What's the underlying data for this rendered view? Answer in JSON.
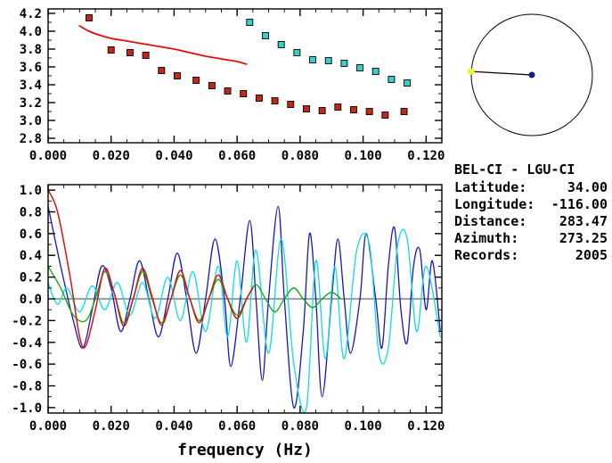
{
  "station": {
    "title": "BEL-CI - LGU-CI",
    "fields": [
      {
        "label": "Latitude:",
        "value": "34.00"
      },
      {
        "label": "Longitude:",
        "value": "-116.00"
      },
      {
        "label": "Distance:",
        "value": "283.47"
      },
      {
        "label": "Azimuth:",
        "value": "273.25"
      },
      {
        "label": "Records:",
        "value": "2005"
      }
    ]
  },
  "azimuth_dial": {
    "azimuth_deg": 273.25,
    "center_dot_color": "#1a1a8c",
    "end_dot_color": "#ffff00",
    "ring_color": "#000000"
  },
  "chart_data": [
    {
      "id": "top-chart",
      "type": "scatter",
      "title": "",
      "xlabel": "",
      "ylabel": "",
      "xlim": [
        0,
        0.125
      ],
      "ylim": [
        2.75,
        4.25
      ],
      "xticks": [
        0,
        0.02,
        0.04,
        0.06,
        0.08,
        0.1,
        0.12
      ],
      "xtick_labels": [
        "0.000",
        "0.020",
        "0.040",
        "0.060",
        "0.080",
        "0.100",
        "0.120"
      ],
      "x_minor_step": 0.005,
      "yticks": [
        2.8,
        3.0,
        3.2,
        3.4,
        3.6,
        3.8,
        4.0,
        4.2
      ],
      "ytick_labels": [
        "2.8",
        "3.0",
        "3.2",
        "3.4",
        "3.6",
        "3.8",
        "4.0",
        "4.2"
      ],
      "y_minor_step": 0.1,
      "grid": false,
      "series": [
        {
          "name": "red-square-dispersion-points",
          "kind": "markers",
          "marker": "square",
          "color": "#c22818",
          "edge": "#000000",
          "points": [
            [
              0.013,
              4.15
            ],
            [
              0.02,
              3.79
            ],
            [
              0.026,
              3.76
            ],
            [
              0.031,
              3.73
            ],
            [
              0.036,
              3.56
            ],
            [
              0.041,
              3.5
            ],
            [
              0.047,
              3.45
            ],
            [
              0.052,
              3.39
            ],
            [
              0.057,
              3.33
            ],
            [
              0.062,
              3.3
            ],
            [
              0.067,
              3.25
            ],
            [
              0.072,
              3.22
            ],
            [
              0.077,
              3.18
            ],
            [
              0.082,
              3.13
            ],
            [
              0.087,
              3.11
            ],
            [
              0.092,
              3.15
            ],
            [
              0.097,
              3.12
            ],
            [
              0.102,
              3.1
            ],
            [
              0.107,
              3.06
            ],
            [
              0.113,
              3.1
            ]
          ]
        },
        {
          "name": "cyan-square-dispersion-points",
          "kind": "markers",
          "marker": "square",
          "color": "#35d0c8",
          "edge": "#000000",
          "points": [
            [
              0.064,
              4.1
            ],
            [
              0.069,
              3.95
            ],
            [
              0.074,
              3.85
            ],
            [
              0.079,
              3.76
            ],
            [
              0.084,
              3.68
            ],
            [
              0.089,
              3.67
            ],
            [
              0.094,
              3.64
            ],
            [
              0.099,
              3.59
            ],
            [
              0.104,
              3.55
            ],
            [
              0.109,
              3.46
            ],
            [
              0.114,
              3.42
            ]
          ]
        },
        {
          "name": "red-dispersion-curve",
          "kind": "line",
          "color": "#dd1010",
          "width": 1.8,
          "points": [
            [
              0.01,
              4.06
            ],
            [
              0.013,
              4.0
            ],
            [
              0.016,
              3.96
            ],
            [
              0.02,
              3.92
            ],
            [
              0.025,
              3.89
            ],
            [
              0.03,
              3.86
            ],
            [
              0.035,
              3.83
            ],
            [
              0.04,
              3.8
            ],
            [
              0.045,
              3.76
            ],
            [
              0.05,
              3.72
            ],
            [
              0.055,
              3.69
            ],
            [
              0.06,
              3.66
            ],
            [
              0.063,
              3.63
            ]
          ]
        }
      ]
    },
    {
      "id": "bottom-chart",
      "type": "line",
      "title": "",
      "xlabel": "frequency (Hz)",
      "ylabel": "",
      "zeroline": true,
      "xlim": [
        0,
        0.125
      ],
      "ylim": [
        -1.05,
        1.05
      ],
      "xticks": [
        0,
        0.02,
        0.04,
        0.06,
        0.08,
        0.1,
        0.12
      ],
      "xtick_labels": [
        "0.000",
        "0.020",
        "0.040",
        "0.060",
        "0.080",
        "0.100",
        "0.120"
      ],
      "x_minor_step": 0.005,
      "yticks": [
        -1.0,
        -0.8,
        -0.6,
        -0.4,
        -0.2,
        0.0,
        0.2,
        0.4,
        0.6,
        0.8,
        1.0
      ],
      "ytick_labels": [
        "-1.0",
        "-0.8",
        "-0.6",
        "-0.4",
        "-0.2",
        "0.0",
        "0.2",
        "0.4",
        "0.6",
        "0.8",
        "1.0"
      ],
      "y_minor_step": 0.1,
      "grid": false,
      "series": [
        {
          "name": "correlation-trace-blue",
          "kind": "line",
          "color": "#1515c8",
          "width": 1.3,
          "points": [
            [
              0,
              0.85
            ],
            [
              0.004,
              0.3
            ],
            [
              0.008,
              -0.2
            ],
            [
              0.011,
              -0.45
            ],
            [
              0.014,
              -0.1
            ],
            [
              0.017,
              0.3
            ],
            [
              0.02,
              0.1
            ],
            [
              0.023,
              -0.3
            ],
            [
              0.026,
              0
            ],
            [
              0.029,
              0.35
            ],
            [
              0.032,
              0
            ],
            [
              0.035,
              -0.35
            ],
            [
              0.038,
              0
            ],
            [
              0.041,
              0.42
            ],
            [
              0.044,
              0
            ],
            [
              0.047,
              -0.5
            ],
            [
              0.05,
              0
            ],
            [
              0.053,
              0.55
            ],
            [
              0.056,
              0
            ],
            [
              0.058,
              -0.62
            ],
            [
              0.061,
              0
            ],
            [
              0.064,
              0.72
            ],
            [
              0.066,
              0
            ],
            [
              0.068,
              -0.75
            ],
            [
              0.07,
              0
            ],
            [
              0.073,
              0.85
            ],
            [
              0.075,
              0
            ],
            [
              0.078,
              -1.0
            ],
            [
              0.081,
              -0.3
            ],
            [
              0.083,
              0.6
            ],
            [
              0.085,
              0
            ],
            [
              0.087,
              -0.9
            ],
            [
              0.09,
              0
            ],
            [
              0.092,
              0.55
            ],
            [
              0.094,
              0
            ],
            [
              0.096,
              -0.5
            ],
            [
              0.099,
              0
            ],
            [
              0.101,
              0.6
            ],
            [
              0.104,
              0
            ],
            [
              0.106,
              -0.45
            ],
            [
              0.108,
              0.3
            ],
            [
              0.11,
              0.65
            ],
            [
              0.112,
              -0.1
            ],
            [
              0.114,
              -0.4
            ],
            [
              0.116,
              0.3
            ],
            [
              0.118,
              0.45
            ],
            [
              0.12,
              -0.1
            ],
            [
              0.122,
              0.35
            ],
            [
              0.1245,
              -0.3
            ]
          ]
        },
        {
          "name": "correlation-trace-cyan",
          "kind": "line",
          "color": "#10dede",
          "width": 1.3,
          "points": [
            [
              0,
              0.15
            ],
            [
              0.003,
              -0.05
            ],
            [
              0.006,
              0.1
            ],
            [
              0.01,
              -0.12
            ],
            [
              0.014,
              0.12
            ],
            [
              0.018,
              -0.1
            ],
            [
              0.022,
              0.15
            ],
            [
              0.026,
              -0.15
            ],
            [
              0.03,
              0.15
            ],
            [
              0.034,
              -0.18
            ],
            [
              0.038,
              0.2
            ],
            [
              0.042,
              -0.2
            ],
            [
              0.046,
              0.25
            ],
            [
              0.05,
              -0.3
            ],
            [
              0.054,
              0.3
            ],
            [
              0.057,
              -0.35
            ],
            [
              0.06,
              0.35
            ],
            [
              0.063,
              -0.4
            ],
            [
              0.066,
              0.45
            ],
            [
              0.07,
              -0.5
            ],
            [
              0.074,
              0.55
            ],
            [
              0.078,
              -0.6
            ],
            [
              0.082,
              -1.0
            ],
            [
              0.085,
              0.35
            ],
            [
              0.088,
              -0.55
            ],
            [
              0.091,
              0.3
            ],
            [
              0.094,
              -0.55
            ],
            [
              0.098,
              0.45
            ],
            [
              0.102,
              0.5
            ],
            [
              0.105,
              -0.5
            ],
            [
              0.108,
              -0.45
            ],
            [
              0.111,
              0.5
            ],
            [
              0.114,
              0.55
            ],
            [
              0.117,
              -0.3
            ],
            [
              0.12,
              0.3
            ],
            [
              0.1245,
              -0.35
            ]
          ]
        },
        {
          "name": "correlation-trace-green",
          "kind": "line",
          "color": "#0caa0c",
          "width": 1.3,
          "points": [
            [
              0,
              0.3
            ],
            [
              0.004,
              0.1
            ],
            [
              0.008,
              -0.15
            ],
            [
              0.012,
              -0.2
            ],
            [
              0.015,
              0
            ],
            [
              0.018,
              0.25
            ],
            [
              0.021,
              0.05
            ],
            [
              0.024,
              -0.22
            ],
            [
              0.027,
              0
            ],
            [
              0.03,
              0.25
            ],
            [
              0.033,
              0
            ],
            [
              0.036,
              -0.22
            ],
            [
              0.039,
              0
            ],
            [
              0.042,
              0.22
            ],
            [
              0.045,
              0
            ],
            [
              0.048,
              -0.2
            ],
            [
              0.051,
              0
            ],
            [
              0.054,
              0.18
            ],
            [
              0.057,
              0
            ],
            [
              0.06,
              -0.15
            ],
            [
              0.063,
              0
            ],
            [
              0.066,
              0.13
            ],
            [
              0.069,
              0
            ],
            [
              0.072,
              -0.12
            ],
            [
              0.075,
              0
            ],
            [
              0.078,
              0.1
            ],
            [
              0.081,
              0
            ],
            [
              0.084,
              -0.08
            ],
            [
              0.087,
              0
            ],
            [
              0.09,
              0.06
            ],
            [
              0.093,
              0
            ]
          ]
        },
        {
          "name": "correlation-trace-red",
          "kind": "line",
          "color": "#dd1010",
          "width": 1.5,
          "points": [
            [
              0,
              1.0
            ],
            [
              0.003,
              0.8
            ],
            [
              0.007,
              0.2
            ],
            [
              0.01,
              -0.35
            ],
            [
              0.012,
              -0.43
            ],
            [
              0.015,
              -0.1
            ],
            [
              0.018,
              0.28
            ],
            [
              0.021,
              0.05
            ],
            [
              0.024,
              -0.25
            ],
            [
              0.027,
              0
            ],
            [
              0.03,
              0.28
            ],
            [
              0.033,
              0.02
            ],
            [
              0.036,
              -0.24
            ],
            [
              0.039,
              0
            ],
            [
              0.042,
              0.26
            ],
            [
              0.045,
              0
            ],
            [
              0.048,
              -0.22
            ],
            [
              0.051,
              0
            ],
            [
              0.054,
              0.22
            ],
            [
              0.057,
              0
            ],
            [
              0.06,
              -0.18
            ],
            [
              0.063,
              0
            ],
            [
              0.065,
              0.1
            ]
          ]
        }
      ]
    }
  ]
}
